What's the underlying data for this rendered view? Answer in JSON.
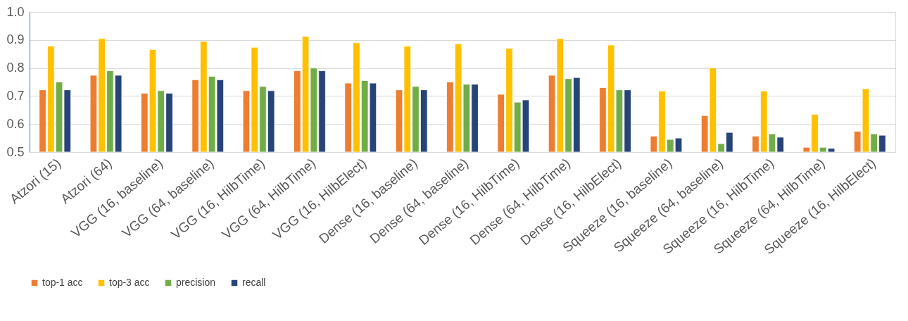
{
  "chart_data": {
    "type": "bar",
    "categories": [
      "Atzori (15)",
      "Atzori (64)",
      "VGG (16, baseline)",
      "VGG (64, baseline)",
      "VGG (16, HilbTime)",
      "VGG (64, HilbTime)",
      "VGG (16, HilbElect)",
      "Dense (16, baseline)",
      "Dense (64, baseline)",
      "Dense (16, HilbTime)",
      "Dense (64, HilbTime)",
      "Dense (16, HilbElect)",
      "Squeeze (16, baseline)",
      "Squeeze (64, baseline)",
      "Squeeze (16, HilbTime)",
      "Squeeze (64, HilbTime)",
      "Squeeze (16, HilbElect)"
    ],
    "series": [
      {
        "name": "top-1 acc",
        "color": "#ed7d31",
        "values": [
          0.722,
          0.774,
          0.71,
          0.758,
          0.719,
          0.79,
          0.746,
          0.722,
          0.75,
          0.706,
          0.774,
          0.73,
          0.557,
          0.63,
          0.557,
          0.517,
          0.574
        ]
      },
      {
        "name": "top-3 acc",
        "color": "#ffc000",
        "values": [
          0.878,
          0.905,
          0.866,
          0.895,
          0.874,
          0.913,
          0.89,
          0.878,
          0.886,
          0.87,
          0.905,
          0.882,
          0.718,
          0.8,
          0.718,
          0.635,
          0.726
        ]
      },
      {
        "name": "precision",
        "color": "#70ad47",
        "values": [
          0.75,
          0.79,
          0.719,
          0.77,
          0.734,
          0.8,
          0.755,
          0.734,
          0.742,
          0.678,
          0.762,
          0.722,
          0.545,
          0.53,
          0.565,
          0.517,
          0.565
        ]
      },
      {
        "name": "recall",
        "color": "#264478",
        "values": [
          0.722,
          0.774,
          0.71,
          0.758,
          0.719,
          0.79,
          0.746,
          0.722,
          0.742,
          0.686,
          0.766,
          0.722,
          0.55,
          0.57,
          0.553,
          0.513,
          0.56
        ]
      }
    ],
    "ylim": [
      0.5,
      1.0
    ],
    "yticks": [
      0.5,
      0.6,
      0.7,
      0.8,
      0.9,
      {
        "value": 1.0,
        "label": "1.0"
      }
    ],
    "grid": "y",
    "legend": "bottom"
  }
}
